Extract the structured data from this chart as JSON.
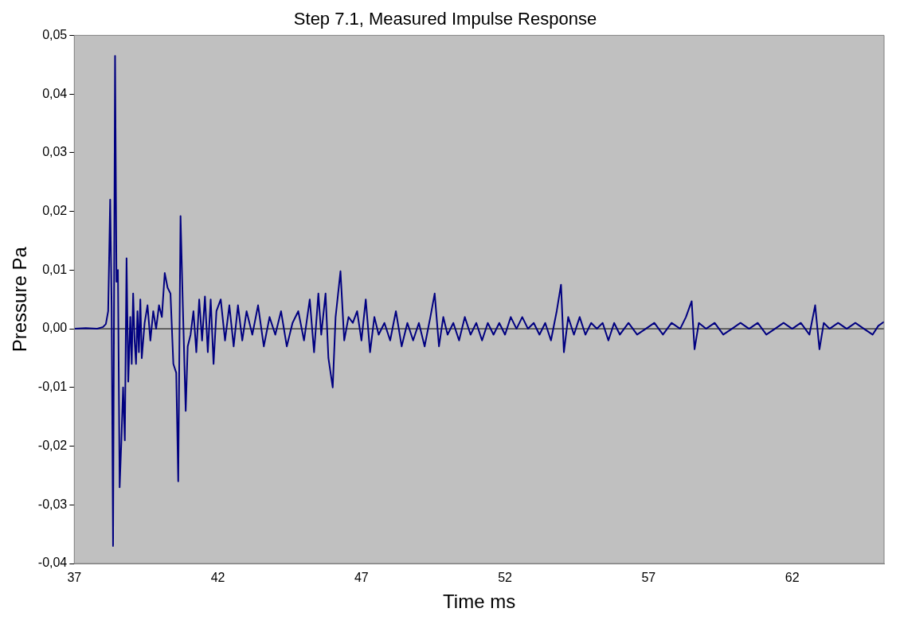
{
  "chart_data": {
    "type": "line",
    "title": "Step 7.1, Measured Impulse Response",
    "xlabel": "Time ms",
    "ylabel": "Pressure Pa",
    "x": [
      37.0,
      37.4,
      37.8,
      38.0,
      38.1,
      38.18,
      38.25,
      38.3,
      38.35,
      38.42,
      38.47,
      38.52,
      38.58,
      38.64,
      38.7,
      38.76,
      38.82,
      38.88,
      38.95,
      39.0,
      39.05,
      39.1,
      39.15,
      39.2,
      39.25,
      39.3,
      39.35,
      39.45,
      39.55,
      39.65,
      39.75,
      39.85,
      39.95,
      40.05,
      40.15,
      40.25,
      40.35,
      40.45,
      40.55,
      40.62,
      40.7,
      40.78,
      40.88,
      40.95,
      41.05,
      41.15,
      41.25,
      41.35,
      41.45,
      41.55,
      41.65,
      41.75,
      41.85,
      41.95,
      42.1,
      42.25,
      42.4,
      42.55,
      42.7,
      42.85,
      43.0,
      43.2,
      43.4,
      43.6,
      43.8,
      44.0,
      44.2,
      44.4,
      44.6,
      44.8,
      45.0,
      45.2,
      45.35,
      45.5,
      45.6,
      45.75,
      45.85,
      46.0,
      46.1,
      46.27,
      46.4,
      46.55,
      46.7,
      46.85,
      47.0,
      47.15,
      47.3,
      47.45,
      47.6,
      47.8,
      48.0,
      48.2,
      48.4,
      48.6,
      48.8,
      49.0,
      49.2,
      49.4,
      49.55,
      49.7,
      49.85,
      50.0,
      50.2,
      50.4,
      50.6,
      50.8,
      51.0,
      51.2,
      51.4,
      51.6,
      51.8,
      52.0,
      52.2,
      52.4,
      52.6,
      52.8,
      53.0,
      53.2,
      53.4,
      53.6,
      53.8,
      53.95,
      54.05,
      54.2,
      54.4,
      54.6,
      54.8,
      55.0,
      55.2,
      55.4,
      55.6,
      55.8,
      56.0,
      56.3,
      56.6,
      56.9,
      57.2,
      57.5,
      57.8,
      58.1,
      58.3,
      58.5,
      58.6,
      58.75,
      59.0,
      59.3,
      59.6,
      59.9,
      60.2,
      60.5,
      60.8,
      61.1,
      61.4,
      61.7,
      62.0,
      62.3,
      62.6,
      62.8,
      62.95,
      63.1,
      63.3,
      63.6,
      63.9,
      64.2,
      64.5,
      64.8,
      65.0,
      65.2
    ],
    "series": [
      {
        "color": "#000080",
        "values": [
          0,
          0.0001,
          0,
          0.0003,
          0.0008,
          0.003,
          0.022,
          0.004,
          -0.037,
          0.0465,
          0.008,
          0.01,
          -0.027,
          -0.019,
          -0.01,
          -0.019,
          0.012,
          -0.009,
          0.002,
          -0.006,
          0.006,
          -0.002,
          -0.006,
          0.003,
          -0.004,
          0.005,
          -0.005,
          0.001,
          0.004,
          -0.002,
          0.003,
          0,
          0.004,
          0.002,
          0.0095,
          0.007,
          0.006,
          -0.006,
          -0.0075,
          -0.026,
          0.0192,
          0.004,
          -0.014,
          -0.003,
          -0.001,
          0.003,
          -0.004,
          0.005,
          -0.002,
          0.0055,
          -0.004,
          0.005,
          -0.006,
          0.003,
          0.005,
          -0.002,
          0.004,
          -0.003,
          0.004,
          -0.002,
          0.003,
          -0.001,
          0.004,
          -0.003,
          0.002,
          -0.001,
          0.003,
          -0.003,
          0.001,
          0.003,
          -0.002,
          0.005,
          -0.004,
          0.006,
          -0.001,
          0.006,
          -0.005,
          -0.01,
          0.002,
          0.0098,
          -0.002,
          0.002,
          0.001,
          0.003,
          -0.002,
          0.005,
          -0.004,
          0.002,
          -0.001,
          0.001,
          -0.002,
          0.003,
          -0.003,
          0.001,
          -0.002,
          0.001,
          -0.003,
          0.002,
          0.006,
          -0.003,
          0.002,
          -0.001,
          0.001,
          -0.002,
          0.002,
          -0.001,
          0.001,
          -0.002,
          0.001,
          -0.001,
          0.001,
          -0.001,
          0.002,
          0,
          0.002,
          0,
          0.001,
          -0.001,
          0.001,
          -0.002,
          0.003,
          0.0075,
          -0.004,
          0.002,
          -0.001,
          0.002,
          -0.001,
          0.001,
          0,
          0.001,
          -0.002,
          0.001,
          -0.001,
          0.001,
          -0.001,
          0,
          0.001,
          -0.001,
          0.001,
          0,
          0.002,
          0.0047,
          -0.0035,
          0.001,
          0,
          0.001,
          -0.001,
          0,
          0.001,
          0,
          0.001,
          -0.001,
          0,
          0.001,
          0,
          0.001,
          -0.001,
          0.004,
          -0.0035,
          0.001,
          0,
          0.001,
          0,
          0.001,
          0,
          -0.001,
          0.0005,
          0.0012
        ]
      }
    ],
    "xlim": [
      37,
      65.2
    ],
    "xticks": [
      37,
      42,
      47,
      52,
      57,
      62
    ],
    "ylim": [
      -0.04,
      0.05
    ],
    "yticks": [
      {
        "value": -0.04,
        "label": "-0,04"
      },
      {
        "value": -0.03,
        "label": "-0,03"
      },
      {
        "value": -0.02,
        "label": "-0,02"
      },
      {
        "value": -0.01,
        "label": "-0,01"
      },
      {
        "value": 0,
        "label": "0,00"
      },
      {
        "value": 0.01,
        "label": "0,01"
      },
      {
        "value": 0.02,
        "label": "0,02"
      },
      {
        "value": 0.03,
        "label": "0,03"
      },
      {
        "value": 0.04,
        "label": "0,04"
      },
      {
        "value": 0.05,
        "label": "0,05"
      }
    ],
    "ref_lines": [
      {
        "axis": "y",
        "value": 0,
        "color": "#000000"
      }
    ],
    "grid": false,
    "legend": false,
    "marker": "none",
    "line_style": "solid"
  }
}
